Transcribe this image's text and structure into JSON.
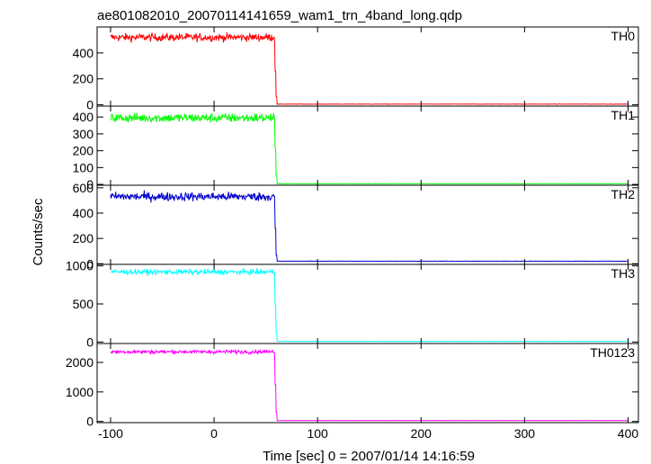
{
  "chart_data": {
    "type": "line",
    "title": "ae801082010_20070114141659_wam1_trn_4band_long.qdp",
    "xlabel": "Time [sec] 0 = 2007/01/14 14:16:59",
    "ylabel": "Counts/sec",
    "xlim": [
      -113,
      410
    ],
    "x_ticks": [
      -100,
      0,
      100,
      200,
      300,
      400
    ],
    "drop_time": 60,
    "panels": [
      {
        "name": "TH0",
        "color": "#ff0000",
        "ylim": [
          -10,
          600
        ],
        "y_ticks": [
          0,
          200,
          400
        ],
        "pre_level": 520,
        "noise": 22,
        "post_level": 5,
        "spike": 260
      },
      {
        "name": "TH1",
        "color": "#00ff00",
        "ylim": [
          -5,
          465
        ],
        "y_ticks": [
          0,
          100,
          200,
          300,
          400
        ],
        "pre_level": 395,
        "noise": 20,
        "post_level": 4,
        "spike": 210
      },
      {
        "name": "TH2",
        "color": "#0000cc",
        "ylim": [
          -5,
          620
        ],
        "y_ticks": [
          0,
          200,
          400,
          600
        ],
        "pre_level": 530,
        "noise": 25,
        "post_level": 20,
        "spike": 280
      },
      {
        "name": "TH3",
        "color": "#00ffff",
        "ylim": [
          -20,
          1020
        ],
        "y_ticks": [
          0,
          500,
          1000
        ],
        "pre_level": 920,
        "noise": 25,
        "post_level": 8,
        "spike": 480
      },
      {
        "name": "TH0123",
        "color": "#ff00ff",
        "ylim": [
          -40,
          2640
        ],
        "y_ticks": [
          0,
          1000,
          2000
        ],
        "pre_level": 2360,
        "noise": 45,
        "post_level": 30,
        "spike": 1250
      }
    ]
  }
}
